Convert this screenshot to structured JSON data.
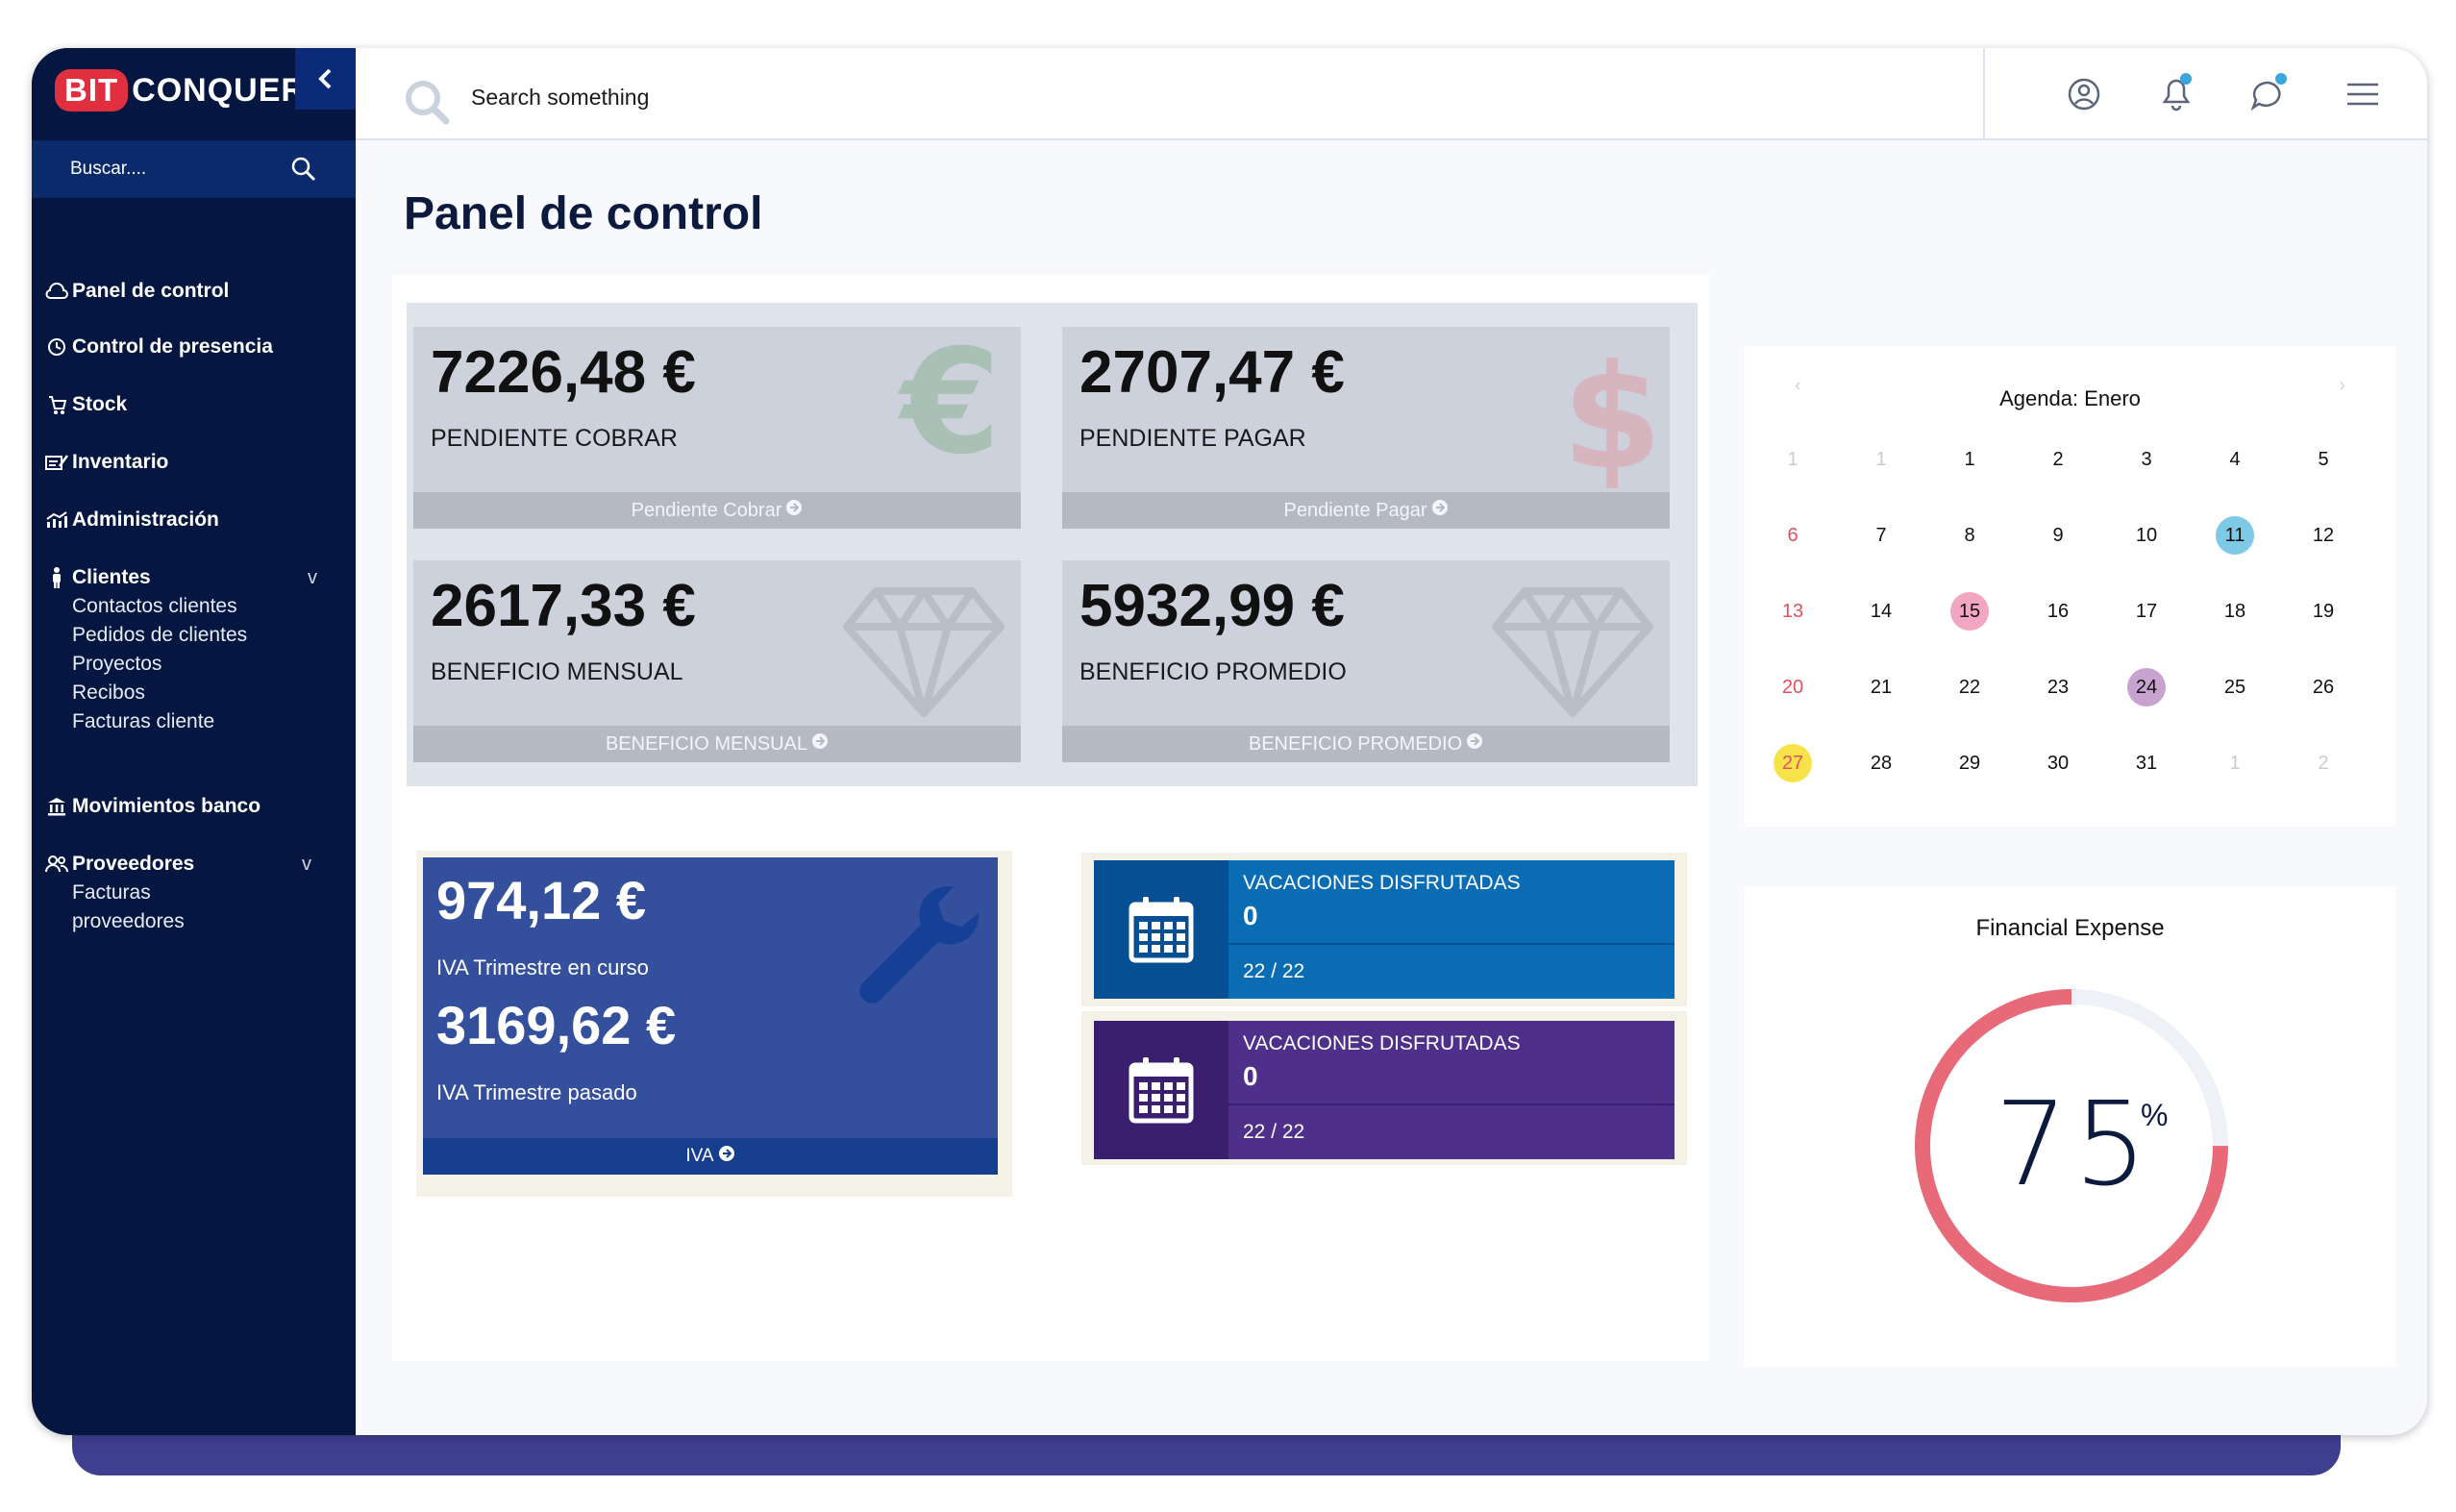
{
  "app": {
    "logo_bit": "BIT",
    "logo_rest": "CONQUER",
    "collapse_icon": "chevron-left-icon"
  },
  "sidebar": {
    "search_placeholder": "Buscar....",
    "nav": [
      {
        "label": "Panel de control",
        "icon": "cloud-icon"
      },
      {
        "label": "Control de presencia",
        "icon": "clock-icon"
      },
      {
        "label": "Stock",
        "icon": "cart-icon"
      },
      {
        "label": "Inventario",
        "icon": "list-edit-icon"
      },
      {
        "label": "Administración",
        "icon": "chart-icon"
      },
      {
        "label": "Clientes",
        "icon": "person-icon",
        "sub": [
          "Contactos clientes",
          "Pedidos de clientes",
          "Proyectos",
          "Recibos",
          "Facturas cliente"
        ]
      },
      {
        "label": "Movimientos banco",
        "icon": "bank-icon"
      },
      {
        "label": "Proveedores",
        "icon": "users-icon",
        "sub": [
          "Facturas",
          "proveedores"
        ]
      }
    ],
    "chevron": "v"
  },
  "topbar": {
    "search_placeholder": "Search something",
    "icons": [
      "user-circle-icon",
      "bell-icon",
      "chat-icon",
      "menu-icon"
    ]
  },
  "page": {
    "title": "Panel de control"
  },
  "kpis": [
    {
      "value": "7226,48 €",
      "label": "PENDIENTE COBRAR",
      "link": "Pendiente Cobrar",
      "icon": "euro-icon"
    },
    {
      "value": "2707,47 €",
      "label": "PENDIENTE PAGAR",
      "link": "Pendiente Pagar",
      "icon": "dollar-icon"
    },
    {
      "value": "2617,33 €",
      "label": "BENEFICIO MENSUAL",
      "link": "BENEFICIO MENSUAL",
      "icon": "diamond-icon"
    },
    {
      "value": "5932,99 €",
      "label": "BENEFICIO PROMEDIO",
      "link": "BENEFICIO PROMEDIO",
      "icon": "diamond-icon"
    }
  ],
  "iva": {
    "current_value": "974,12 €",
    "current_label": "IVA Trimestre en curso",
    "past_value": "3169,62 €",
    "past_label": "IVA Trimestre pasado",
    "link": "IVA"
  },
  "vacations": [
    {
      "title": "VACACIONES DISFRUTADAS",
      "value": "0",
      "count": "22 / 22",
      "color": "#0a6db4",
      "dark": "#074f93"
    },
    {
      "title": "VACACIONES DISFRUTADAS",
      "value": "0",
      "count": "22 / 22",
      "color": "#4e2f8a",
      "dark": "#3a1f6e"
    }
  ],
  "calendar": {
    "title": "Agenda: Enero",
    "prev": "‹",
    "next": "›",
    "weeks": [
      [
        "1",
        "1",
        "1",
        "2",
        "3",
        "4",
        "5"
      ],
      [
        "6",
        "7",
        "8",
        "9",
        "10",
        "11",
        "12"
      ],
      [
        "13",
        "14",
        "15",
        "16",
        "17",
        "18",
        "19"
      ],
      [
        "20",
        "21",
        "22",
        "23",
        "24",
        "25",
        "26"
      ],
      [
        "27",
        "28",
        "29",
        "30",
        "31",
        "1",
        "2"
      ]
    ],
    "highlights": {
      "11": "#7ec9e6",
      "15": "#f3a6c2",
      "24": "#c9a3cf",
      "27": "#f6e34a"
    }
  },
  "financial": {
    "title": "Financial Expense",
    "value": "75",
    "unit": "%",
    "fraction": 0.75,
    "color": "#e86a78",
    "track": "#eef1f5"
  }
}
